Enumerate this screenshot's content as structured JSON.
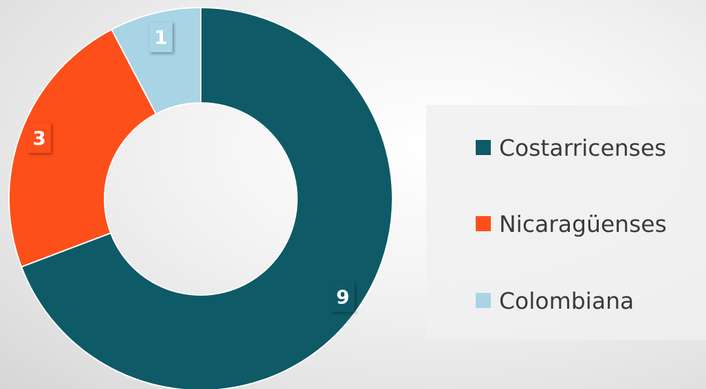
{
  "chart_data": {
    "type": "pie",
    "title": "",
    "categories": [
      "Costarricenses",
      "Nicaragüenses",
      "Colombiana"
    ],
    "values": [
      9,
      3,
      1
    ],
    "labels": [
      "9",
      "3",
      "1"
    ],
    "colors": [
      "#0f5a67",
      "#fd4f1a",
      "#a8d4e6"
    ],
    "donut": true,
    "legend_position": "right",
    "data_labels": true
  }
}
